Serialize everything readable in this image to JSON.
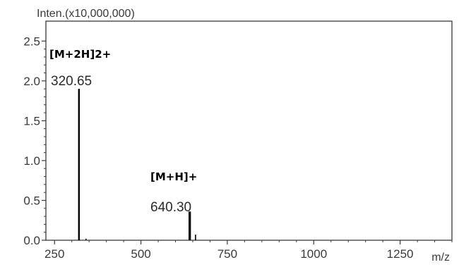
{
  "chart_data": {
    "type": "bar",
    "ylabel": "Inten.(x10,000,000)",
    "xlabel": "m/z",
    "xlim": [
      225,
      1400
    ],
    "ylim": [
      0,
      2.75
    ],
    "x_ticks": [
      250,
      500,
      750,
      1000,
      1250
    ],
    "x_tick_labels": [
      "250",
      "500",
      "750",
      "1000",
      "1250"
    ],
    "y_ticks": [
      0.0,
      0.5,
      1.0,
      1.5,
      2.0,
      2.5
    ],
    "y_tick_labels": [
      "0.0",
      "0.5",
      "1.0",
      "1.5",
      "2.0",
      "2.5"
    ],
    "grid": false,
    "legend": "none",
    "line_color": "#000000",
    "series": [
      {
        "x": [
          322,
          341,
          642,
          643,
          658
        ],
        "y": [
          0.01,
          0.02,
          0.12,
          0.36,
          0.07
        ]
      }
    ],
    "labeled_peaks": [
      {
        "mz": 320.65,
        "intensity": 1.9,
        "value_label": "320.65",
        "ion": "[M+2H]2+"
      },
      {
        "mz": 640.3,
        "intensity": 0.36,
        "value_label": "640.30",
        "ion": "[M+H]+"
      }
    ]
  }
}
